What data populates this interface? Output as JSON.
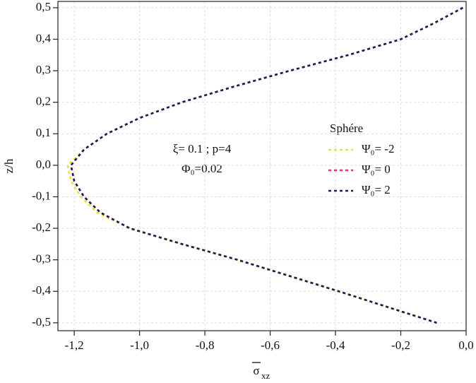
{
  "chart_data": {
    "type": "line",
    "ylabel": "z/h",
    "xlabel": {
      "symbol": "σ",
      "subscript": "xz"
    },
    "annotations": [
      "ξ= 0.1 ; p=4",
      "Φ₀=0.02"
    ],
    "legend_title": "Sphére",
    "xlim": [
      -1.25,
      0.0
    ],
    "ylim": [
      -0.525,
      0.52
    ],
    "xticks": [
      {
        "value": -1.2,
        "label": "-1,2"
      },
      {
        "value": -1.0,
        "label": "-1,0"
      },
      {
        "value": -0.8,
        "label": "-0,8"
      },
      {
        "value": -0.6,
        "label": "-0,6"
      },
      {
        "value": -0.4,
        "label": "-0,4"
      },
      {
        "value": -0.2,
        "label": "-0,2"
      },
      {
        "value": 0.0,
        "label": "0,0"
      }
    ],
    "yticks": [
      {
        "value": 0.5,
        "label": "0,5"
      },
      {
        "value": 0.4,
        "label": "0,4"
      },
      {
        "value": 0.3,
        "label": "0,3"
      },
      {
        "value": 0.2,
        "label": "0,2"
      },
      {
        "value": 0.1,
        "label": "0,1"
      },
      {
        "value": 0.0,
        "label": "0,0"
      },
      {
        "value": -0.1,
        "label": "-0,1"
      },
      {
        "value": -0.2,
        "label": "-0,2"
      },
      {
        "value": -0.3,
        "label": "-0,3"
      },
      {
        "value": -0.4,
        "label": "-0,4"
      },
      {
        "value": -0.5,
        "label": "-0,5"
      }
    ],
    "grid": true,
    "series": [
      {
        "name": "Ψ₀= -2",
        "color": "#e6e33c",
        "x": [
          -0.01,
          -0.1,
          -0.2,
          -0.36,
          -0.54,
          -0.71,
          -0.87,
          -1.0,
          -1.1,
          -1.17,
          -1.22,
          -1.21,
          -1.18,
          -1.13,
          -1.03,
          -0.87,
          -0.7,
          -0.545,
          -0.39,
          -0.24,
          -0.09
        ],
        "values": [
          0.5,
          0.45,
          0.4,
          0.35,
          0.3,
          0.25,
          0.2,
          0.15,
          0.1,
          0.05,
          0.0,
          -0.05,
          -0.1,
          -0.15,
          -0.2,
          -0.25,
          -0.3,
          -0.35,
          -0.4,
          -0.45,
          -0.5
        ]
      },
      {
        "name": "Ψ₀= 0",
        "color": "#ff2a62",
        "x": [
          -0.01,
          -0.1,
          -0.2,
          -0.36,
          -0.54,
          -0.71,
          -0.87,
          -1.0,
          -1.1,
          -1.17,
          -1.21,
          -1.2,
          -1.17,
          -1.12,
          -1.03,
          -0.87,
          -0.7,
          -0.545,
          -0.39,
          -0.24,
          -0.09
        ],
        "values": [
          0.5,
          0.45,
          0.4,
          0.35,
          0.3,
          0.25,
          0.2,
          0.15,
          0.1,
          0.05,
          0.0,
          -0.05,
          -0.1,
          -0.15,
          -0.2,
          -0.25,
          -0.3,
          -0.35,
          -0.4,
          -0.45,
          -0.5
        ]
      },
      {
        "name": "Ψ₀= 2",
        "color": "#1c1c5e",
        "x": [
          -0.01,
          -0.1,
          -0.2,
          -0.36,
          -0.54,
          -0.71,
          -0.87,
          -1.0,
          -1.1,
          -1.17,
          -1.21,
          -1.2,
          -1.17,
          -1.12,
          -1.03,
          -0.87,
          -0.7,
          -0.545,
          -0.39,
          -0.24,
          -0.09
        ],
        "values": [
          0.5,
          0.45,
          0.4,
          0.35,
          0.3,
          0.25,
          0.2,
          0.15,
          0.1,
          0.05,
          0.0,
          -0.05,
          -0.1,
          -0.15,
          -0.2,
          -0.25,
          -0.3,
          -0.35,
          -0.4,
          -0.45,
          -0.5
        ]
      }
    ]
  }
}
